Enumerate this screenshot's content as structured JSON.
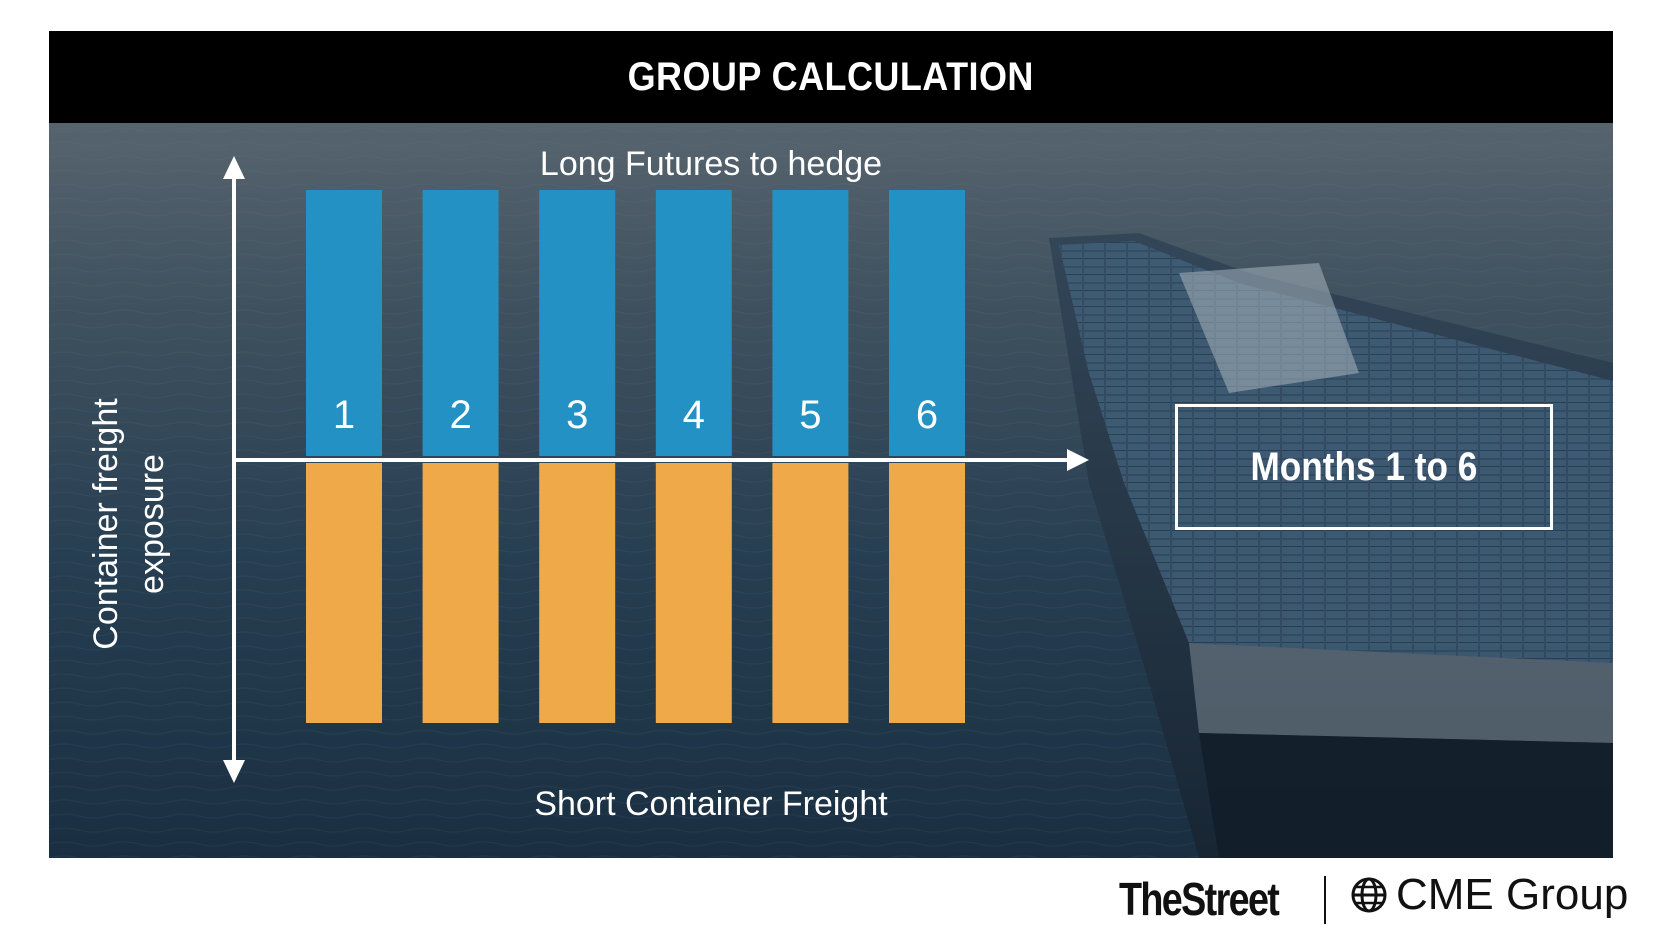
{
  "title": "GROUP CALCULATION",
  "top_label": "Long Futures to hedge",
  "bottom_label": "Short Container Freight",
  "axis_label": "Container freight exposure",
  "months_box_label": "Months 1 to 6",
  "columns": [
    {
      "label": "1"
    },
    {
      "label": "2"
    },
    {
      "label": "3"
    },
    {
      "label": "4"
    },
    {
      "label": "5"
    },
    {
      "label": "6"
    }
  ],
  "colors": {
    "title_bar": "#000000",
    "long_bar": "#2391c4",
    "short_bar": "#f0a948",
    "arrow": "#ffffff"
  },
  "logos": {
    "thestreet": "TheStreet",
    "cme": "CME Group",
    "cme_icon": "globe-icon"
  }
}
